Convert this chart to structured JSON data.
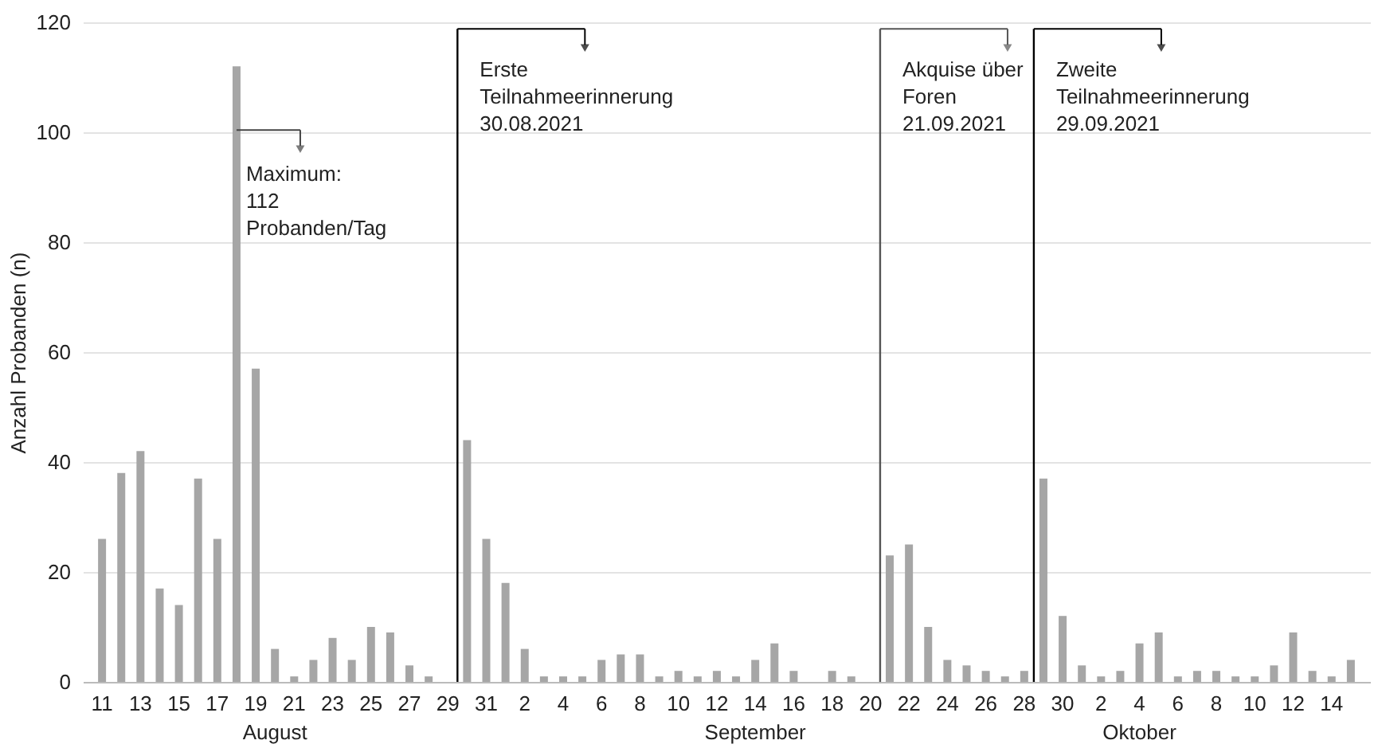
{
  "chart_data": {
    "type": "bar",
    "ylabel": "Anzahl Probanden (n)",
    "x": [
      "2021-08-11",
      "2021-08-12",
      "2021-08-13",
      "2021-08-14",
      "2021-08-15",
      "2021-08-16",
      "2021-08-17",
      "2021-08-18",
      "2021-08-19",
      "2021-08-20",
      "2021-08-21",
      "2021-08-22",
      "2021-08-23",
      "2021-08-24",
      "2021-08-25",
      "2021-08-26",
      "2021-08-27",
      "2021-08-28",
      "2021-08-29",
      "2021-08-30",
      "2021-08-31",
      "2021-09-01",
      "2021-09-02",
      "2021-09-03",
      "2021-09-04",
      "2021-09-05",
      "2021-09-06",
      "2021-09-07",
      "2021-09-08",
      "2021-09-09",
      "2021-09-10",
      "2021-09-11",
      "2021-09-12",
      "2021-09-13",
      "2021-09-14",
      "2021-09-15",
      "2021-09-16",
      "2021-09-17",
      "2021-09-18",
      "2021-09-19",
      "2021-09-20",
      "2021-09-21",
      "2021-09-22",
      "2021-09-23",
      "2021-09-24",
      "2021-09-25",
      "2021-09-26",
      "2021-09-27",
      "2021-09-28",
      "2021-09-29",
      "2021-09-30",
      "2021-10-01",
      "2021-10-02",
      "2021-10-03",
      "2021-10-04",
      "2021-10-05",
      "2021-10-06",
      "2021-10-07",
      "2021-10-08",
      "2021-10-09",
      "2021-10-10",
      "2021-10-11",
      "2021-10-12",
      "2021-10-13",
      "2021-10-14",
      "2021-10-15"
    ],
    "values": [
      26,
      38,
      42,
      17,
      14,
      37,
      26,
      112,
      57,
      6,
      1,
      4,
      8,
      4,
      10,
      9,
      3,
      1,
      0,
      44,
      26,
      18,
      6,
      1,
      1,
      1,
      4,
      5,
      5,
      1,
      2,
      1,
      2,
      1,
      4,
      7,
      2,
      0,
      2,
      1,
      0,
      23,
      25,
      10,
      4,
      3,
      2,
      1,
      2,
      37,
      12,
      3,
      1,
      2,
      7,
      9,
      1,
      2,
      2,
      1,
      1,
      3,
      9,
      2,
      1,
      4
    ],
    "color": "#a6a6a6",
    "xlim": [
      "2021-08-10",
      "2021-10-16"
    ],
    "xticks": [
      {
        "value": "2021-08-11",
        "label": "11"
      },
      {
        "value": "2021-08-13",
        "label": "13"
      },
      {
        "value": "2021-08-15",
        "label": "15"
      },
      {
        "value": "2021-08-17",
        "label": "17"
      },
      {
        "value": "2021-08-19",
        "label": "19"
      },
      {
        "value": "2021-08-21",
        "label": "21"
      },
      {
        "value": "2021-08-23",
        "label": "23"
      },
      {
        "value": "2021-08-25",
        "label": "25"
      },
      {
        "value": "2021-08-27",
        "label": "27"
      },
      {
        "value": "2021-08-29",
        "label": "29"
      },
      {
        "value": "2021-08-31",
        "label": "31"
      },
      {
        "value": "2021-09-02",
        "label": "2"
      },
      {
        "value": "2021-09-04",
        "label": "4"
      },
      {
        "value": "2021-09-06",
        "label": "6"
      },
      {
        "value": "2021-09-08",
        "label": "8"
      },
      {
        "value": "2021-09-10",
        "label": "10"
      },
      {
        "value": "2021-09-12",
        "label": "12"
      },
      {
        "value": "2021-09-14",
        "label": "14"
      },
      {
        "value": "2021-09-16",
        "label": "16"
      },
      {
        "value": "2021-09-18",
        "label": "18"
      },
      {
        "value": "2021-09-20",
        "label": "20"
      },
      {
        "value": "2021-09-22",
        "label": "22"
      },
      {
        "value": "2021-09-24",
        "label": "24"
      },
      {
        "value": "2021-09-26",
        "label": "26"
      },
      {
        "value": "2021-09-28",
        "label": "28"
      },
      {
        "value": "2021-09-30",
        "label": "30"
      },
      {
        "value": "2021-10-02",
        "label": "2"
      },
      {
        "value": "2021-10-04",
        "label": "4"
      },
      {
        "value": "2021-10-06",
        "label": "6"
      },
      {
        "value": "2021-10-08",
        "label": "8"
      },
      {
        "value": "2021-10-10",
        "label": "10"
      },
      {
        "value": "2021-10-12",
        "label": "12"
      },
      {
        "value": "2021-10-14",
        "label": "14"
      }
    ],
    "ylim": [
      0,
      120
    ],
    "yticks": [
      0,
      20,
      40,
      60,
      80,
      100,
      120
    ],
    "grid": "y",
    "x2lim": [
      "2021-08-10",
      "2021-10-16"
    ],
    "x2ticks": [
      {
        "value": "2021-08-20",
        "label": "August"
      },
      {
        "value": "2021-09-14",
        "label": "September"
      },
      {
        "value": "2021-10-04",
        "label": "Oktober"
      }
    ],
    "ref_lines": [
      {
        "axis": "x",
        "value": "2021-08-29T12:00",
        "label": "Erste\nTeilnahmeerinnerung\n30.08.2021",
        "color": "#000000"
      },
      {
        "axis": "x",
        "value": "2021-09-20T12:00",
        "label": "Akquise über\nForen\n21.09.2021",
        "color": "#555555"
      },
      {
        "axis": "x",
        "value": "2021-09-28T12:00",
        "label": "Zweite\nTeilnahmeerinnerung\n29.09.2021",
        "color": "#000000"
      }
    ],
    "annotations": [
      "Maximum:\n112\nProbanden/Tag"
    ]
  }
}
